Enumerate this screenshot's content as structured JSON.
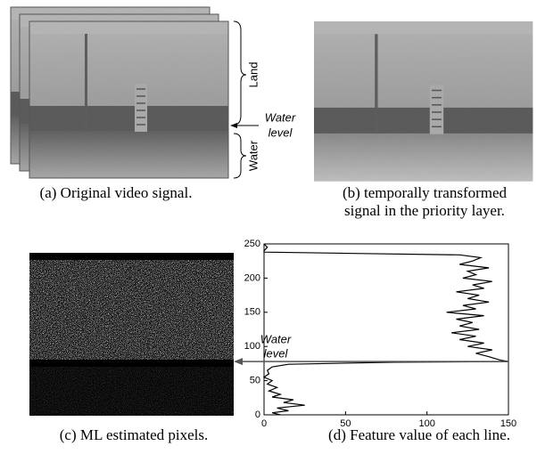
{
  "panels": {
    "a": {
      "caption": "(a) Original video signal.",
      "land": "Land",
      "water": "Water",
      "water_level": [
        "Water",
        "level"
      ]
    },
    "b": {
      "caption": [
        "(b) temporally transformed",
        "signal in the priority layer."
      ]
    },
    "c": {
      "caption": "(c) ML estimated pixels."
    },
    "d": {
      "caption": "(d) Feature value of each line.",
      "water_level": [
        "Water",
        "level"
      ]
    }
  },
  "chart_data": {
    "type": "line",
    "xlim": [
      0,
      150
    ],
    "ylim": [
      0,
      250
    ],
    "xticks": [
      0,
      50,
      100,
      150
    ],
    "yticks": [
      0,
      50,
      100,
      150,
      200,
      250
    ],
    "water_level": 78,
    "series": [
      {
        "color": "#000000",
        "x": [
          10,
          5,
          15,
          8,
          25,
          12,
          18,
          5,
          10,
          3,
          8,
          2,
          5,
          0,
          3,
          2,
          5,
          15,
          80,
          150,
          145,
          138,
          130,
          140,
          125,
          135,
          120,
          130,
          115,
          132,
          120,
          128,
          118,
          135,
          112,
          130,
          122,
          138,
          125,
          132,
          118,
          135,
          128,
          140,
          122,
          130,
          125,
          138,
          120,
          128,
          133,
          120,
          60,
          0,
          0,
          2,
          0
        ],
        "values": [
          0,
          3,
          6,
          10,
          14,
          18,
          22,
          26,
          30,
          35,
          40,
          45,
          50,
          55,
          60,
          65,
          70,
          74,
          77,
          78,
          80,
          85,
          90,
          95,
          100,
          105,
          110,
          115,
          120,
          125,
          130,
          135,
          140,
          145,
          150,
          155,
          160,
          165,
          170,
          175,
          180,
          185,
          190,
          195,
          200,
          205,
          210,
          215,
          220,
          225,
          230,
          234,
          236,
          238,
          240,
          245,
          250
        ]
      }
    ]
  }
}
